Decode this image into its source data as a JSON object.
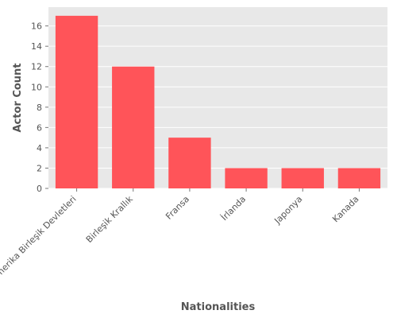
{
  "chart_data": {
    "type": "bar",
    "categories": [
      "Amerika Birleşik Devletleri",
      "Birleşik Krallık",
      "Fransa",
      "İrlanda",
      "Japonya",
      "Kanada"
    ],
    "values": [
      17,
      12,
      5,
      2,
      2,
      2
    ],
    "title": "",
    "xlabel": "Nationalities",
    "ylabel": "Actor Count",
    "ylim": [
      0,
      17.85
    ],
    "yticks": [
      0,
      2,
      4,
      6,
      8,
      10,
      12,
      14,
      16
    ],
    "grid": true,
    "legend": "none",
    "colors": {
      "bar": "#ff5459",
      "plot_background": "#e8e8e8",
      "grid": "#ffffff",
      "text": "#555555"
    }
  }
}
